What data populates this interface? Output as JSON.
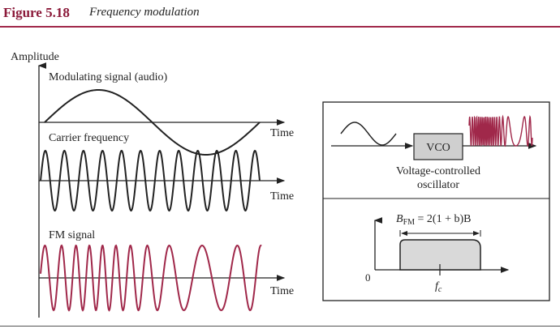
{
  "header": {
    "figure_number": "Figure 5.18",
    "caption": "Frequency modulation"
  },
  "left_panel": {
    "y_axis_label": "Amplitude",
    "modulating_label": "Modulating signal (audio)",
    "carrier_label": "Carrier frequency",
    "fm_label": "FM signal",
    "time_label": "Time"
  },
  "vco_box": {
    "block_label": "VCO",
    "caption_line1": "Voltage-controlled",
    "caption_line2": "oscillator"
  },
  "spectrum_box": {
    "formula_b": "B",
    "formula_sub": "FM",
    "formula_rest": " = 2(1 + b)B",
    "origin_label": "0",
    "center_f": "f",
    "center_sub": "c"
  },
  "colors": {
    "accent": "#8b1a3a",
    "fm_signal": "#a0284a",
    "line": "#222222",
    "spectrum_fill": "#d9d9d9"
  }
}
